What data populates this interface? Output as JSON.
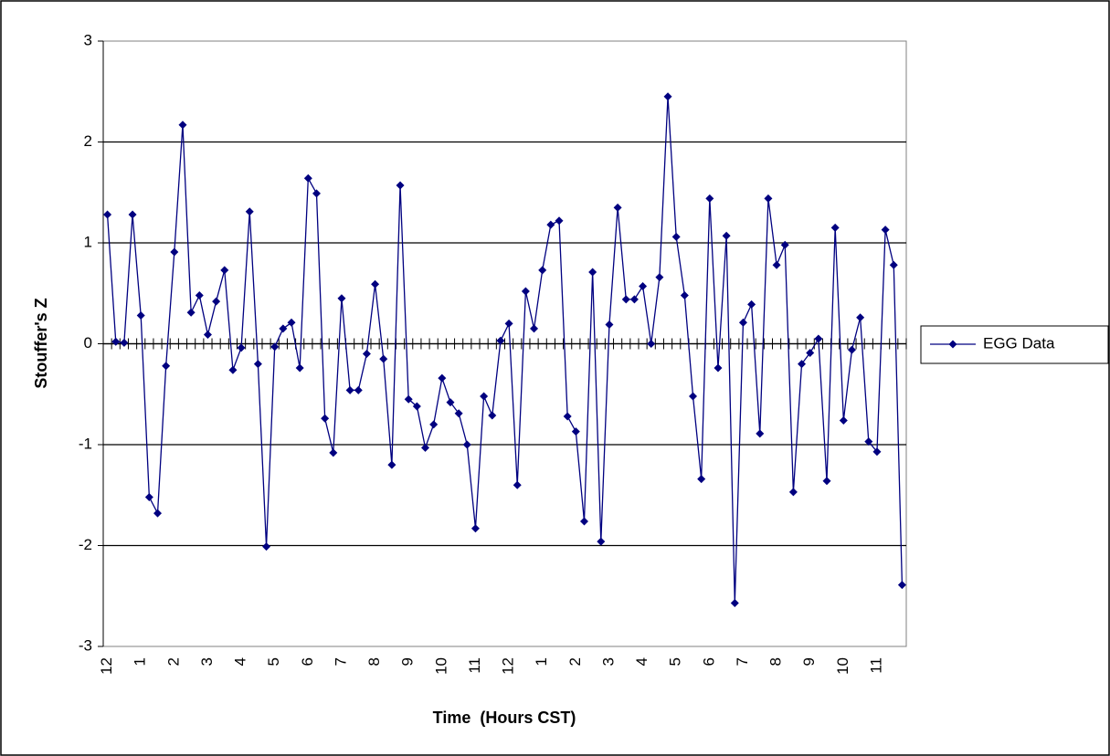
{
  "chart_data": {
    "type": "line",
    "y_label": "Stouffer's Z",
    "x_label": "Time  (Hours CST)",
    "categories": [
      "12",
      null,
      null,
      null,
      "1",
      null,
      null,
      null,
      "2",
      null,
      null,
      null,
      "3",
      null,
      null,
      null,
      "4",
      null,
      null,
      null,
      "5",
      null,
      null,
      null,
      "6",
      null,
      null,
      null,
      "7",
      null,
      null,
      null,
      "8",
      null,
      null,
      null,
      "9",
      null,
      null,
      null,
      "10",
      null,
      null,
      null,
      "11",
      null,
      null,
      null,
      "12",
      null,
      null,
      null,
      "1",
      null,
      null,
      null,
      "2",
      null,
      null,
      null,
      "3",
      null,
      null,
      null,
      "4",
      null,
      null,
      null,
      "5",
      null,
      null,
      null,
      "6",
      null,
      null,
      null,
      "7",
      null,
      null,
      null,
      "8",
      null,
      null,
      null,
      "9",
      null,
      null,
      null,
      "10",
      null,
      null,
      null,
      "11",
      null,
      null,
      null
    ],
    "series": [
      {
        "name": "EGG Data",
        "color": "#000080",
        "values": [
          1.28,
          0.02,
          0.01,
          1.28,
          0.28,
          -1.52,
          -1.68,
          -0.22,
          0.91,
          2.17,
          0.31,
          0.48,
          0.09,
          0.42,
          0.73,
          -0.26,
          -0.04,
          1.31,
          -0.2,
          -2.01,
          -0.03,
          0.15,
          0.21,
          -0.24,
          1.64,
          1.49,
          -0.74,
          -1.08,
          0.45,
          -0.46,
          -0.46,
          -0.1,
          0.59,
          -0.15,
          -1.2,
          1.57,
          -0.55,
          -0.62,
          -1.03,
          -0.8,
          -0.34,
          -0.58,
          -0.69,
          -1.0,
          -1.83,
          -0.52,
          -0.71,
          0.03,
          0.2,
          -1.4,
          0.52,
          0.15,
          0.73,
          1.18,
          1.22,
          -0.72,
          -0.87,
          -1.76,
          0.71,
          -1.96,
          0.19,
          1.35,
          0.44,
          0.44,
          0.57,
          0.0,
          0.66,
          2.45,
          1.06,
          0.48,
          -0.52,
          -1.34,
          1.44,
          -0.24,
          1.07,
          -2.57,
          0.21,
          0.39,
          -0.89,
          1.44,
          0.78,
          0.98,
          -1.47,
          -0.2,
          -0.09,
          0.05,
          -1.36,
          1.15,
          -0.76,
          -0.06,
          0.26,
          -0.97,
          -1.07,
          1.13,
          0.78,
          -2.39
        ]
      }
    ],
    "ylim": [
      -3,
      3
    ],
    "yticks": [
      -3,
      -2,
      -1,
      0,
      1,
      2,
      3
    ],
    "grid": true,
    "legend": "right"
  }
}
